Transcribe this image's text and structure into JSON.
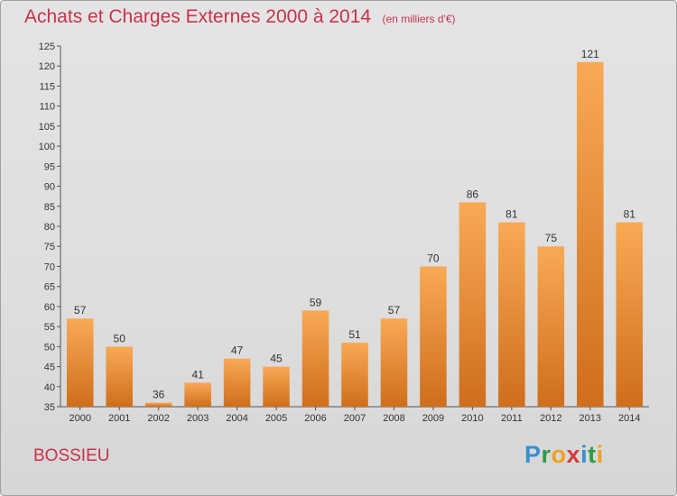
{
  "header": {
    "title": "Achats et Charges Externes 2000 à 2014",
    "subtitle": "(en milliers d'€)"
  },
  "footer": {
    "town": "BOSSIEU",
    "logo_letters": [
      "P",
      "r",
      "o",
      "x",
      "i",
      "t",
      "i"
    ],
    "logo_colors": [
      "#3a8fd0",
      "#2f9a45",
      "#f0a020",
      "#d23c3c",
      "#3a8fd0",
      "#2f9a45",
      "#f0a020"
    ]
  },
  "chart_data": {
    "type": "bar",
    "title": "Achats et Charges Externes 2000 à 2014",
    "subtitle": "(en milliers d'€)",
    "categories": [
      "2000",
      "2001",
      "2002",
      "2003",
      "2004",
      "2005",
      "2006",
      "2007",
      "2008",
      "2009",
      "2010",
      "2011",
      "2012",
      "2013",
      "2014"
    ],
    "values": [
      57,
      50,
      36,
      41,
      47,
      45,
      59,
      51,
      57,
      70,
      86,
      81,
      75,
      121,
      81
    ],
    "ylim": [
      35,
      125
    ],
    "yticks": [
      35,
      40,
      45,
      50,
      55,
      60,
      65,
      70,
      75,
      80,
      85,
      90,
      95,
      100,
      105,
      110,
      115,
      120,
      125
    ],
    "grid": false,
    "bar_color_top": "#f9a955",
    "bar_color_bottom": "#cf6e1c"
  }
}
